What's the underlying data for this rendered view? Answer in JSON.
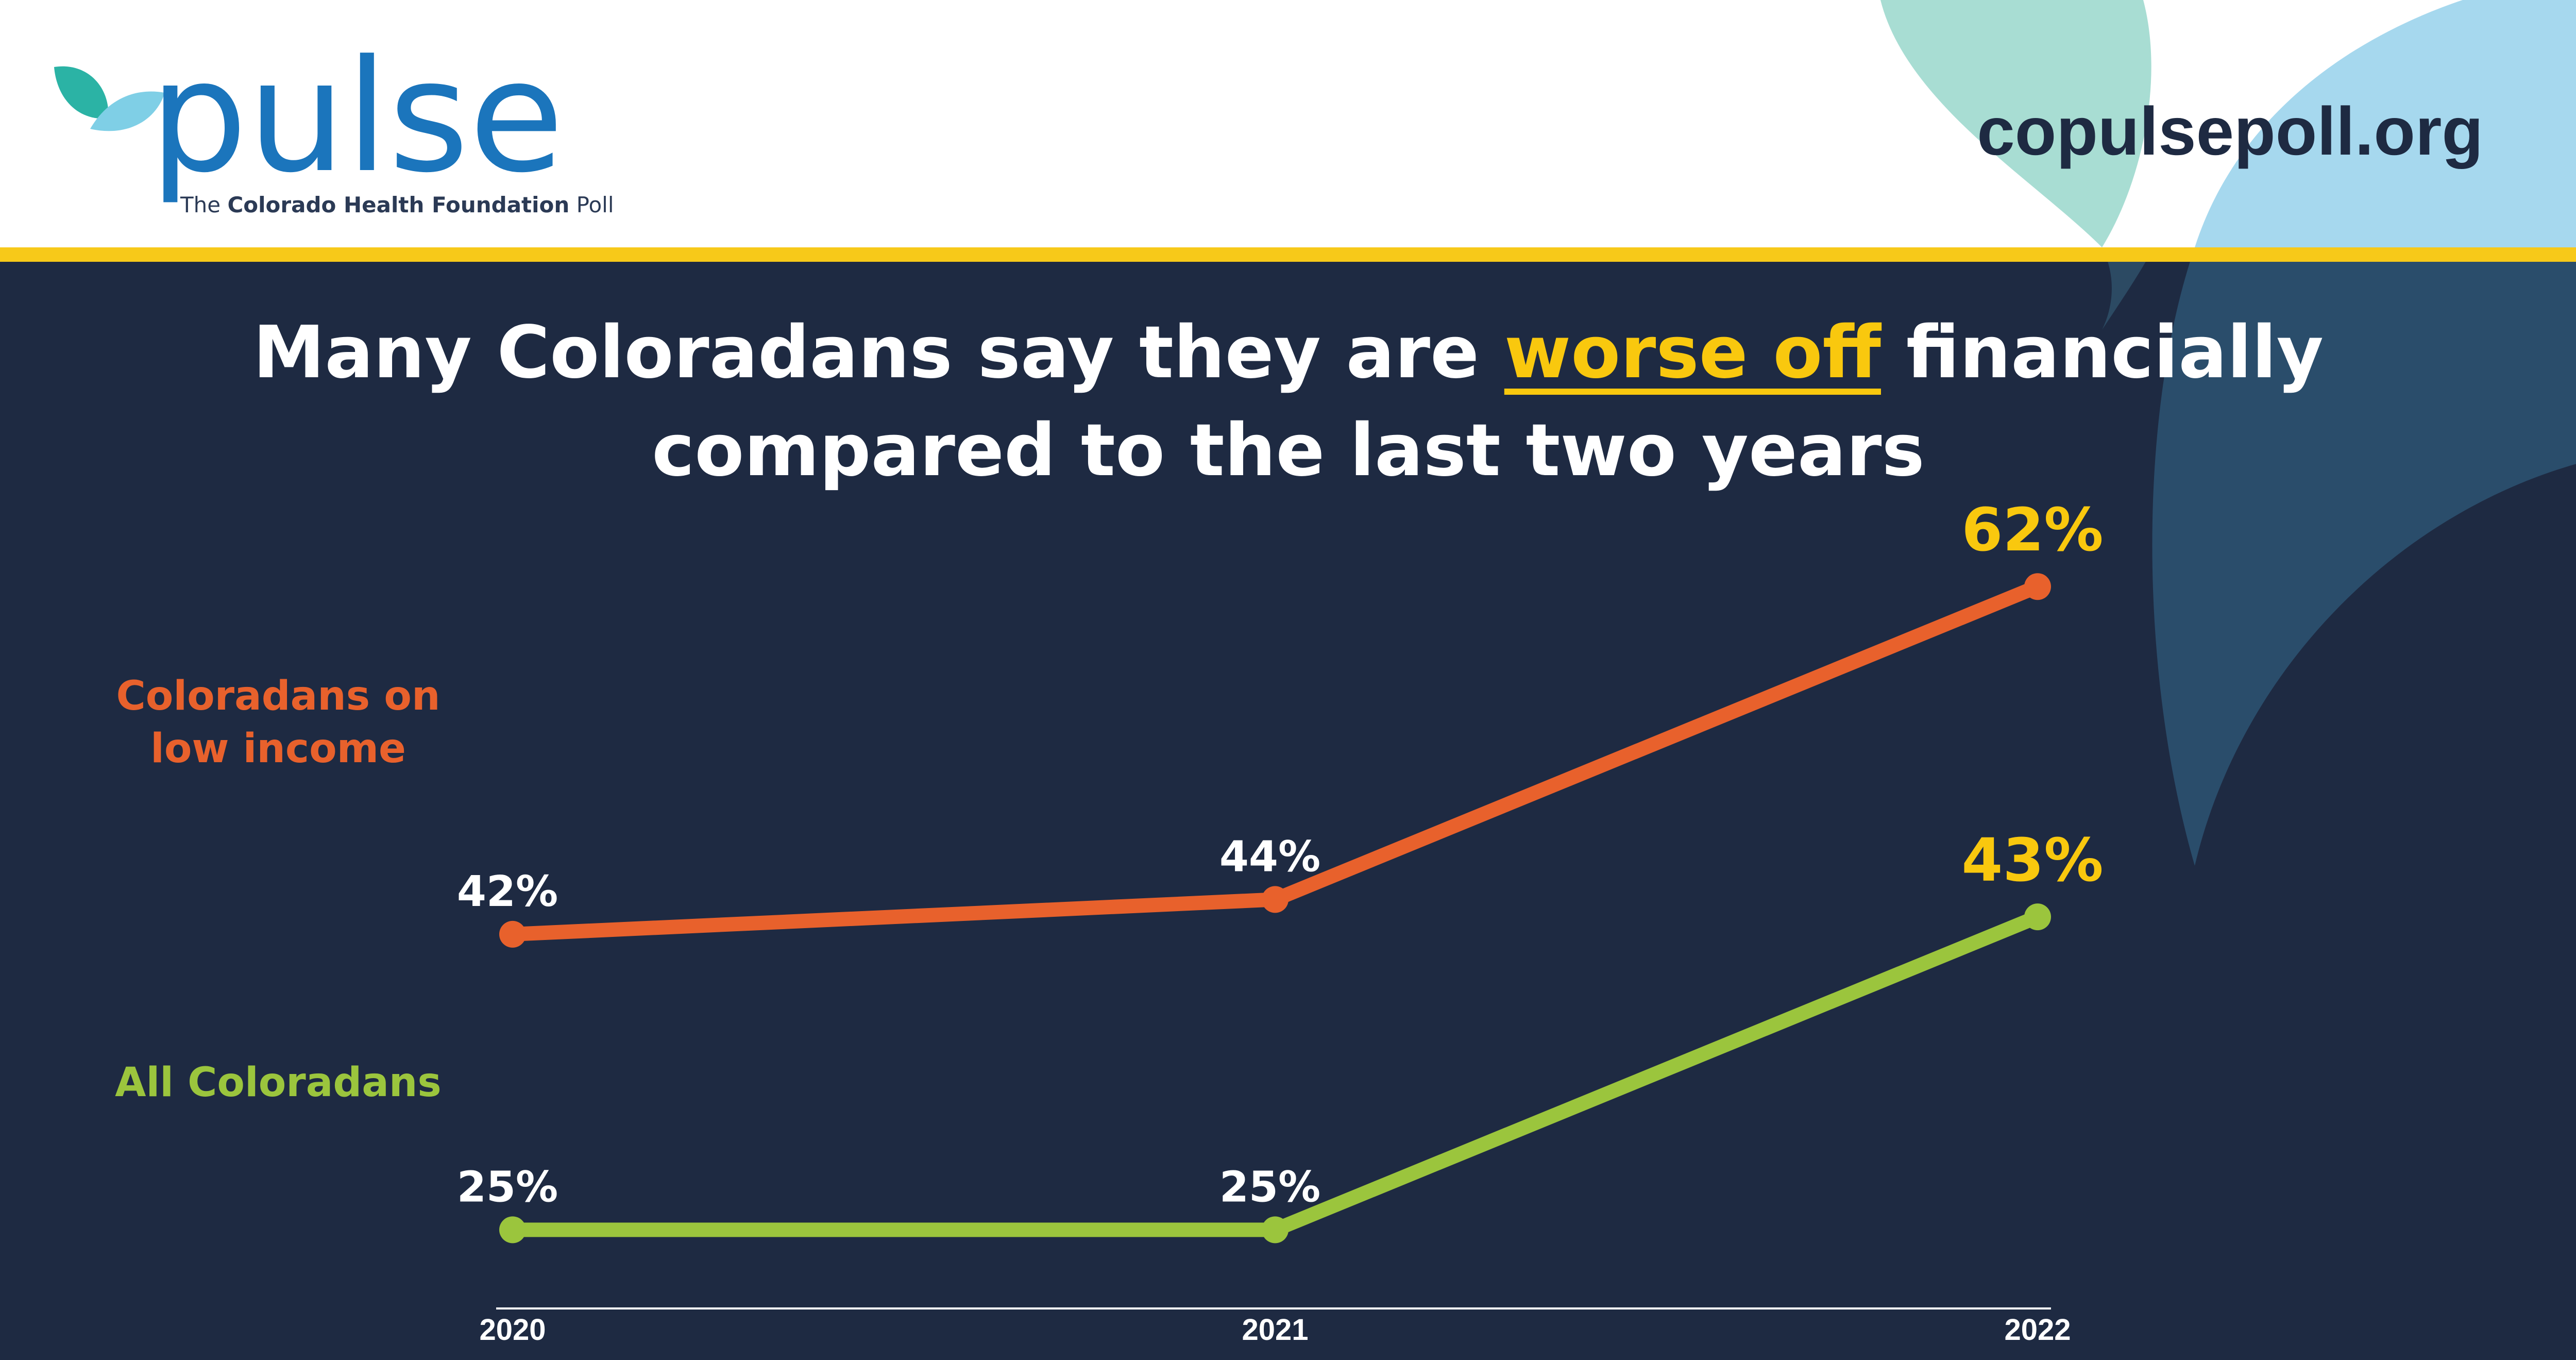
{
  "header": {
    "logo": "pulse",
    "tagline_start": "The",
    "tagline_bold": "Colorado Health Foundation",
    "tagline_end": "Poll",
    "url": "copulsepoll.org"
  },
  "chart_data": {
    "type": "line",
    "title": [
      "Many Coloradans say they are",
      "worse off",
      "financially",
      "compared to the last two years"
    ],
    "title_highlight_color": "#f9c80e",
    "categories": [
      "2020",
      "2021",
      "2022"
    ],
    "series": [
      {
        "name": "Coloradans on low income",
        "color": "#e8612c",
        "values": [
          42,
          44,
          62
        ],
        "value_labels": [
          "42%",
          "44%",
          "62%"
        ]
      },
      {
        "name": "All Coloradans",
        "color": "#9bc53d",
        "values": [
          25,
          25,
          43
        ],
        "value_labels": [
          "25%",
          "25%",
          "43%"
        ]
      }
    ],
    "last_label_color": "#f9c80e",
    "ylim": [
      20,
      65
    ]
  }
}
